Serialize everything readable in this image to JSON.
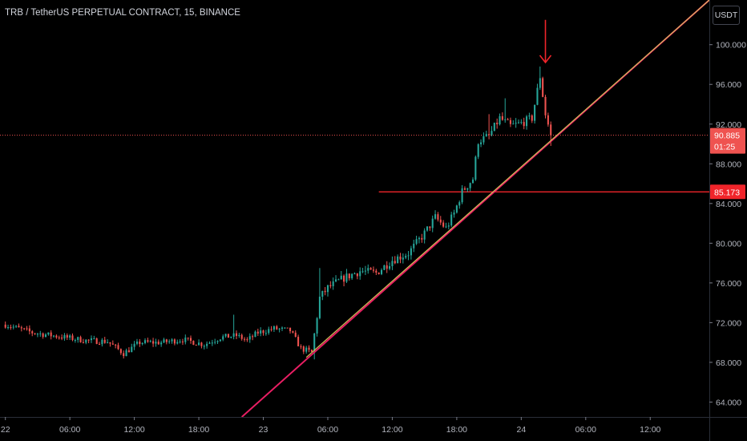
{
  "header": {
    "symbol_title": "TRB / TetherUS PERPETUAL CONTRACT, 15, BINANCE",
    "currency_label": "USDT"
  },
  "price_scale": {
    "last_price_label": "90.885",
    "countdown_label": "01:25",
    "level_label": "85.173"
  },
  "colors": {
    "background": "#000000",
    "up_candle": "#26a69a",
    "down_candle": "#ef5350",
    "channel_line": "#e91e63",
    "inner_line": "#d4c95a",
    "level_line": "#f0242a",
    "arrow": "#f0242a",
    "axis_text": "#b2b5be",
    "price_dotted": "#ef5350"
  },
  "chart_data": {
    "type": "candlestick",
    "title": "TRB / TetherUS PERPETUAL CONTRACT, 15, BINANCE",
    "ylim": [
      62.5,
      104.5
    ],
    "y_ticks": [
      64,
      68,
      72,
      76,
      80,
      84,
      88,
      92,
      96,
      100
    ],
    "y_tick_labels": [
      "64.000",
      "68.000",
      "72.000",
      "76.000",
      "80.000",
      "84.000",
      "88.000",
      "92.000",
      "96.000",
      "100.000"
    ],
    "x_ticks": [
      {
        "label": "22",
        "t": 0
      },
      {
        "label": "06:00",
        "t": 24
      },
      {
        "label": "12:00",
        "t": 48
      },
      {
        "label": "18:00",
        "t": 72
      },
      {
        "label": "23",
        "t": 96
      },
      {
        "label": "06:00",
        "t": 120
      },
      {
        "label": "12:00",
        "t": 144
      },
      {
        "label": "18:00",
        "t": 168
      },
      {
        "label": "24",
        "t": 192
      },
      {
        "label": "06:00",
        "t": 216
      },
      {
        "label": "12:00",
        "t": 240
      }
    ],
    "xlim": [
      -2,
      262
    ],
    "last_price": 90.885,
    "horizontal_level": {
      "price": 85.173,
      "t_start": 139
    },
    "channel_line": {
      "t1": 88,
      "p1": 62.5,
      "t2": 262,
      "p2": 104.5
    },
    "inner_line": {
      "t1": 112,
      "p1": 68.5,
      "t2": 262,
      "p2": 104.5
    },
    "arrow_marker": {
      "t": 201,
      "p_top": 102.5,
      "p_bottom": 98.2
    },
    "anchors": [
      {
        "t": 0,
        "p": 71.8
      },
      {
        "t": 10,
        "p": 71.0
      },
      {
        "t": 20,
        "p": 70.6
      },
      {
        "t": 30,
        "p": 70.2
      },
      {
        "t": 38,
        "p": 70.1
      },
      {
        "t": 44,
        "p": 68.9
      },
      {
        "t": 50,
        "p": 70.0
      },
      {
        "t": 58,
        "p": 70.0
      },
      {
        "t": 66,
        "p": 70.3
      },
      {
        "t": 74,
        "p": 69.8
      },
      {
        "t": 80,
        "p": 70.5
      },
      {
        "t": 86,
        "p": 70.7
      },
      {
        "t": 90,
        "p": 70.2
      },
      {
        "t": 94,
        "p": 71.0
      },
      {
        "t": 100,
        "p": 71.4
      },
      {
        "t": 106,
        "p": 71.2
      },
      {
        "t": 110,
        "p": 69.4
      },
      {
        "t": 114,
        "p": 69.0
      },
      {
        "t": 117,
        "p": 74.5
      },
      {
        "t": 120,
        "p": 75.5
      },
      {
        "t": 126,
        "p": 76.5
      },
      {
        "t": 132,
        "p": 77.2
      },
      {
        "t": 138,
        "p": 77.0
      },
      {
        "t": 144,
        "p": 78.3
      },
      {
        "t": 150,
        "p": 79.0
      },
      {
        "t": 156,
        "p": 81.0
      },
      {
        "t": 160,
        "p": 82.6
      },
      {
        "t": 164,
        "p": 81.5
      },
      {
        "t": 167,
        "p": 83.0
      },
      {
        "t": 170,
        "p": 85.2
      },
      {
        "t": 174,
        "p": 86.5
      },
      {
        "t": 176,
        "p": 90.3
      },
      {
        "t": 180,
        "p": 90.8
      },
      {
        "t": 184,
        "p": 92.6
      },
      {
        "t": 188,
        "p": 91.8
      },
      {
        "t": 192,
        "p": 92.1
      },
      {
        "t": 196,
        "p": 92.6
      },
      {
        "t": 199,
        "p": 96.8
      },
      {
        "t": 201,
        "p": 93.0
      },
      {
        "t": 203,
        "p": 90.9
      }
    ],
    "spikes": [
      {
        "t": 85,
        "high": 72.8
      },
      {
        "t": 115,
        "low": 68.3
      },
      {
        "t": 117,
        "high": 77.5
      },
      {
        "t": 180,
        "high": 93.0
      },
      {
        "t": 186,
        "high": 94.6
      },
      {
        "t": 199,
        "high": 97.8
      },
      {
        "t": 203,
        "low": 89.8
      }
    ]
  }
}
